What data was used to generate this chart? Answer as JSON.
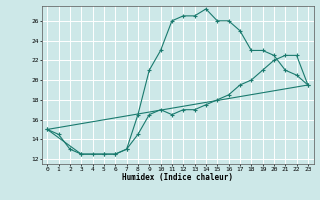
{
  "xlabel": "Humidex (Indice chaleur)",
  "bg_color": "#cde8e8",
  "grid_color": "#ffffff",
  "line_color": "#1a7a6e",
  "xlim": [
    -0.5,
    23.5
  ],
  "ylim": [
    11.5,
    27.5
  ],
  "yticks": [
    12,
    14,
    16,
    18,
    20,
    22,
    24,
    26
  ],
  "xticks": [
    0,
    1,
    2,
    3,
    4,
    5,
    6,
    7,
    8,
    9,
    10,
    11,
    12,
    13,
    14,
    15,
    16,
    17,
    18,
    19,
    20,
    21,
    22,
    23
  ],
  "line1_x": [
    0,
    1,
    2,
    3,
    4,
    5,
    6,
    7,
    8,
    9,
    10,
    11,
    12,
    13,
    14,
    15,
    16,
    17,
    18,
    19,
    20,
    21,
    22,
    23
  ],
  "line1_y": [
    15.0,
    14.5,
    13.0,
    12.5,
    12.5,
    12.5,
    12.5,
    13.0,
    16.5,
    21.0,
    23.0,
    26.0,
    26.5,
    26.5,
    27.2,
    26.0,
    26.0,
    25.0,
    23.0,
    23.0,
    22.5,
    21.0,
    20.5,
    19.5
  ],
  "line2_x": [
    0,
    3,
    5,
    6,
    7,
    8,
    9,
    10,
    11,
    12,
    13,
    14,
    15,
    16,
    17,
    18,
    19,
    20,
    21,
    22,
    23
  ],
  "line2_y": [
    15.0,
    12.5,
    12.5,
    12.5,
    13.0,
    14.5,
    16.5,
    17.0,
    16.5,
    17.0,
    17.0,
    17.5,
    18.0,
    18.5,
    19.5,
    20.0,
    21.0,
    22.0,
    22.5,
    22.5,
    19.5
  ],
  "line3_x": [
    0,
    23
  ],
  "line3_y": [
    15.0,
    19.5
  ]
}
